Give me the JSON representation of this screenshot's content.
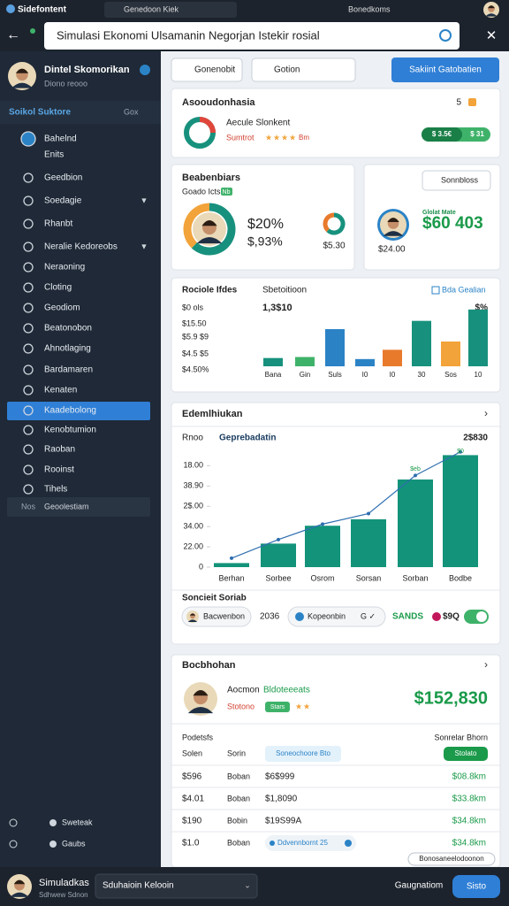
{
  "browser": {
    "app_name": "Sidefontent",
    "tab_title": "Genedoon Kiek",
    "account": "Bonedkoms",
    "address": "Simulasi Ekonomi Ulsamanin Negorjan Istekir rosial"
  },
  "sidebar": {
    "user_name": "Dintel Skomorikan",
    "user_role": "Diono reooo",
    "section_title": "Soikol Suktore",
    "section_action": "Gox",
    "items": [
      "Bahelnd",
      "Enits",
      "Geedbion",
      "Soedagie",
      "Rhanbt",
      "Neralie Kedoreobs",
      "Neraoning",
      "Cloting",
      "Geodiom",
      "Beatonobon",
      "Ahnotlaging",
      "Bardamaren",
      "Kenaten",
      "Kaadebolong",
      "Kenobtumion",
      "Raoban",
      "Rooinst",
      "Tihels"
    ],
    "active_index": 13,
    "group_count": "Nos",
    "group_label": "Geoolestiam",
    "footer": [
      "Sweteak",
      "Gaubs"
    ]
  },
  "toolbar": {
    "filter": "Gonenobit",
    "search": "Gotion",
    "action": "Sakiint Gatobatien"
  },
  "summary_card": {
    "title": "Asooudonhasia",
    "name": "Aecule Slonkent",
    "status": "Sumtrot",
    "rating": 4,
    "status_tag": "Bm",
    "count": "5",
    "progress_left": "$ 3.5€",
    "progress_right": "$ 31"
  },
  "balance_card": {
    "title": "Beabenbiars",
    "subtitle": "Goado Icts",
    "badge": "Nb",
    "share": "$20%",
    "change": "$,93%",
    "mini_value": "$5.30",
    "donut": [
      62,
      38
    ]
  },
  "profile_card": {
    "button": "Sonnbloss",
    "label": "Glolat Mate",
    "value": "$60 403",
    "sub_value": "$24.00"
  },
  "comparison_chart": {
    "title": "Rociole Ifdes",
    "subtitle": "Sbetoitioon",
    "legend": "Bda Gealian",
    "total": "1,3$10",
    "unit": "$%",
    "y_labels": [
      "$0 ols",
      "$15.50",
      "$5.9 $9",
      "$4.5 $5",
      "$4.50%"
    ],
    "categories": [
      "Bana",
      "Gin",
      "Suls",
      "I0",
      "I0",
      "30",
      "Sos",
      "10"
    ],
    "ylim": [
      0,
      60
    ],
    "values": [
      8,
      9,
      36,
      7,
      16,
      44,
      24,
      55
    ],
    "colors": [
      "#17917d",
      "#3fb26a",
      "#2b83c6",
      "#2b83c6",
      "#e87a2c",
      "#17917d",
      "#f2a33a",
      "#17917d"
    ]
  },
  "trend_chart": {
    "title": "Edemlhiukan",
    "label": "Rnoo",
    "series_name": "Geprebadatin",
    "total": "2$830",
    "ylim": [
      0,
      145
    ],
    "yticks": [
      0,
      {
        "value": 25,
        "label": "22.00"
      },
      {
        "value": 50,
        "label": "34.00"
      },
      {
        "value": 75,
        "label": "2$.00"
      },
      {
        "value": 100,
        "label": "38.90"
      },
      {
        "value": 125,
        "label": "18.00"
      }
    ],
    "categories": [
      "Berhan",
      "Sorbee",
      "Osrom",
      "Sorsan",
      "Sorban",
      "Bodbe"
    ],
    "bars": {
      "color": "#12937a",
      "values": [
        5,
        29,
        51,
        59,
        108,
        138
      ]
    },
    "line": {
      "color": "#2f6fb0",
      "values": [
        11,
        34,
        53,
        66,
        113,
        142
      ]
    },
    "annotations": [
      "$eb",
      "$0"
    ]
  },
  "filters": {
    "title": "Soncieit Soriab",
    "chip1": "Bacwenbon",
    "year": "2036",
    "chip2": "Kopeonbin",
    "chip2_action": "G ✓",
    "tag": "SANDS",
    "amount": "$9Q"
  },
  "orders_card": {
    "title": "Bocbhohan",
    "name": "Aocmon",
    "name_accent": "Bldoteeeats",
    "status": "Stotono",
    "status_tag": "Stars",
    "stars": 2,
    "total": "$152,830",
    "table_title": "Podetsfs",
    "table_action": "Sonrelar Bhorn",
    "columns": [
      "Solen",
      "Sorin",
      "Soneochoore Bto",
      "Stolato"
    ],
    "rows": [
      [
        "$596",
        "Boban",
        "$6$999",
        "$08.8km"
      ],
      [
        "$4.01",
        "Boban",
        "$1,8090",
        "$33.8km"
      ],
      [
        "$190",
        "Bobin",
        "$19S99A",
        "$34.8km"
      ],
      [
        "$1.0",
        "Boban",
        "Ddvennbornt 25",
        "$34.8km"
      ]
    ],
    "footer": "Bonosaneelodoonon"
  },
  "bottom_bar": {
    "name": "Simuladkas",
    "subtitle": "Sdhwew Sdnon",
    "select": "Sduhaioin Kelooin",
    "link": "Gaugnatiom",
    "button": "Sisto"
  }
}
